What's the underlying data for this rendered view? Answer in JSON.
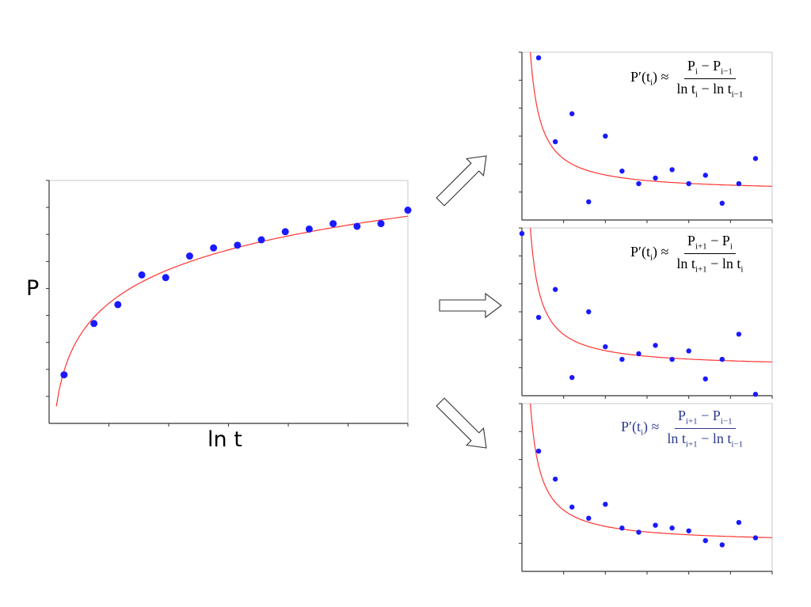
{
  "colors": {
    "points": "#1a1aff",
    "fit": "#ff3333",
    "axis": "#333333",
    "formula_highlight": "#2b3a8f"
  },
  "main_chart": {
    "ylabel": "P",
    "xlabel": "ln t"
  },
  "formulas": {
    "backward": {
      "lhs": "P′(t",
      "lhs_sub": "i",
      "lhs_end": ") ≈",
      "num": "P",
      "num_sub1": "i",
      "num_mid": " − P",
      "num_sub2": "i−1",
      "den": "ln t",
      "den_sub1": "i",
      "den_mid": " − ln t",
      "den_sub2": "i−1"
    },
    "forward": {
      "lhs": "P′(t",
      "lhs_sub": "i",
      "lhs_end": ") ≈",
      "num": "P",
      "num_sub1": "i+1",
      "num_mid": " − P",
      "num_sub2": "i",
      "den": "ln t",
      "den_sub1": "i+1",
      "den_mid": " − ln t",
      "den_sub2": "i"
    },
    "central": {
      "lhs": "P′(t",
      "lhs_sub": "i",
      "lhs_end": ") ≈",
      "num": "P",
      "num_sub1": "i+1",
      "num_mid": " − P",
      "num_sub2": "i−1",
      "den": "ln t",
      "den_sub1": "i+1",
      "den_mid": " − ln t",
      "den_sub2": "i−1"
    }
  },
  "chart_data": [
    {
      "type": "scatter",
      "xlabel": "ln t",
      "ylabel": "P",
      "xlim": [
        0,
        6
      ],
      "ylim": [
        0,
        9
      ],
      "x": [
        0.25,
        0.65,
        1.05,
        1.45,
        1.85,
        2.25,
        2.65,
        3.05,
        3.45,
        3.85,
        4.25,
        4.65,
        5.05,
        5.45,
        5.85,
        6.0
      ],
      "points": [
        {
          "x": 0.25,
          "y": 1.8
        },
        {
          "x": 0.75,
          "y": 3.7
        },
        {
          "x": 1.15,
          "y": 4.4
        },
        {
          "x": 1.55,
          "y": 5.5
        },
        {
          "x": 1.95,
          "y": 5.4
        },
        {
          "x": 2.35,
          "y": 6.2
        },
        {
          "x": 2.75,
          "y": 6.5
        },
        {
          "x": 3.15,
          "y": 6.6
        },
        {
          "x": 3.55,
          "y": 6.8
        },
        {
          "x": 3.95,
          "y": 7.1
        },
        {
          "x": 4.35,
          "y": 7.2
        },
        {
          "x": 4.75,
          "y": 7.4
        },
        {
          "x": 5.15,
          "y": 7.3
        },
        {
          "x": 5.55,
          "y": 7.4
        },
        {
          "x": 6.0,
          "y": 7.9
        }
      ],
      "fit": "logarithmic",
      "grid": false
    },
    {
      "type": "scatter",
      "formula": "backward",
      "xlim": [
        0,
        6
      ],
      "ylim": [
        0,
        6
      ],
      "points": [
        {
          "x": 0.4,
          "y": 5.8
        },
        {
          "x": 0.8,
          "y": 2.8
        },
        {
          "x": 1.2,
          "y": 3.8
        },
        {
          "x": 1.6,
          "y": 0.65
        },
        {
          "x": 2.0,
          "y": 3.0
        },
        {
          "x": 2.4,
          "y": 1.75
        },
        {
          "x": 2.8,
          "y": 1.3
        },
        {
          "x": 3.2,
          "y": 1.5
        },
        {
          "x": 3.6,
          "y": 1.8
        },
        {
          "x": 4.0,
          "y": 1.3
        },
        {
          "x": 4.4,
          "y": 1.6
        },
        {
          "x": 4.8,
          "y": 0.6
        },
        {
          "x": 5.2,
          "y": 1.3
        },
        {
          "x": 5.6,
          "y": 2.2
        }
      ],
      "fit": "reciprocal",
      "grid": false
    },
    {
      "type": "scatter",
      "formula": "forward",
      "xlim": [
        0,
        6
      ],
      "ylim": [
        0,
        6
      ],
      "points": [
        {
          "x": 0.0,
          "y": 5.8
        },
        {
          "x": 0.4,
          "y": 2.8
        },
        {
          "x": 0.8,
          "y": 3.8
        },
        {
          "x": 1.2,
          "y": 0.65
        },
        {
          "x": 1.6,
          "y": 3.0
        },
        {
          "x": 2.0,
          "y": 1.75
        },
        {
          "x": 2.4,
          "y": 1.3
        },
        {
          "x": 2.8,
          "y": 1.5
        },
        {
          "x": 3.2,
          "y": 1.8
        },
        {
          "x": 3.6,
          "y": 1.3
        },
        {
          "x": 4.0,
          "y": 1.6
        },
        {
          "x": 4.4,
          "y": 0.6
        },
        {
          "x": 4.8,
          "y": 1.3
        },
        {
          "x": 5.2,
          "y": 2.2
        },
        {
          "x": 5.6,
          "y": 0.05
        }
      ],
      "fit": "reciprocal",
      "grid": false
    },
    {
      "type": "scatter",
      "formula": "central",
      "xlim": [
        0,
        6
      ],
      "ylim": [
        0,
        6
      ],
      "points": [
        {
          "x": 0.4,
          "y": 4.3
        },
        {
          "x": 0.8,
          "y": 3.3
        },
        {
          "x": 1.2,
          "y": 2.3
        },
        {
          "x": 1.6,
          "y": 1.9
        },
        {
          "x": 2.0,
          "y": 2.4
        },
        {
          "x": 2.4,
          "y": 1.55
        },
        {
          "x": 2.8,
          "y": 1.4
        },
        {
          "x": 3.2,
          "y": 1.65
        },
        {
          "x": 3.6,
          "y": 1.55
        },
        {
          "x": 4.0,
          "y": 1.45
        },
        {
          "x": 4.4,
          "y": 1.1
        },
        {
          "x": 4.8,
          "y": 0.95
        },
        {
          "x": 5.2,
          "y": 1.75
        },
        {
          "x": 5.6,
          "y": 1.2
        }
      ],
      "fit": "reciprocal",
      "grid": false
    }
  ]
}
